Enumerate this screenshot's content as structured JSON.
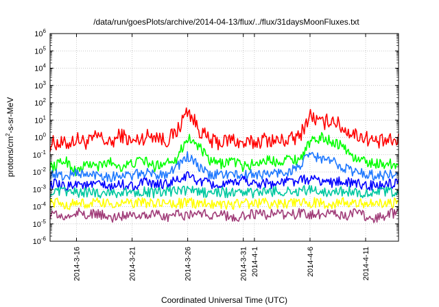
{
  "chart_data": {
    "type": "line",
    "title": "/data/run/goesPlots/archive/2014-04-13/flux/../flux/31daysMoonFluxes.txt",
    "xlabel": "Coordinated Universal Time (UTC)",
    "ylabel": "protons/cm2-s-sr-MeV",
    "ylabel_parts": [
      "protons/cm",
      "2",
      "-s-sr-MeV"
    ],
    "yscale": "log",
    "ylim_exponents": [
      -6,
      6
    ],
    "yticks": [
      {
        "base": "10",
        "exp": "-6"
      },
      {
        "base": "10",
        "exp": "-5"
      },
      {
        "base": "10",
        "exp": "-4"
      },
      {
        "base": "10",
        "exp": "-3"
      },
      {
        "base": "10",
        "exp": "-2"
      },
      {
        "base": "10",
        "exp": "-1"
      },
      {
        "base": "10",
        "exp": "0"
      },
      {
        "base": "10",
        "exp": "1"
      },
      {
        "base": "10",
        "exp": "2"
      },
      {
        "base": "10",
        "exp": "3"
      },
      {
        "base": "10",
        "exp": "4"
      },
      {
        "base": "10",
        "exp": "5"
      },
      {
        "base": "10",
        "exp": "6"
      }
    ],
    "xlim": [
      "2014-03-13T15:00",
      "2014-04-13T23:00"
    ],
    "xticks": [
      {
        "date": "2014-03-16",
        "label": "2014-3-16"
      },
      {
        "date": "2014-03-21",
        "label": "2014-3-21"
      },
      {
        "date": "2014-03-26",
        "label": "2014-3-26"
      },
      {
        "date": "2014-03-31",
        "label": "2014-3-31"
      },
      {
        "date": "2014-04-01",
        "label": "2014-4-1"
      },
      {
        "date": "2014-04-06",
        "label": "2014-4-6"
      },
      {
        "date": "2014-04-11",
        "label": "2014-4-11"
      }
    ],
    "grid": true,
    "series": [
      {
        "color": "#ff0000",
        "x": [
          "2014-03-13",
          "2014-03-14",
          "2014-03-15",
          "2014-03-16",
          "2014-03-17",
          "2014-03-18",
          "2014-03-19",
          "2014-03-20",
          "2014-03-21",
          "2014-03-22",
          "2014-03-23",
          "2014-03-24",
          "2014-03-25",
          "2014-03-26",
          "2014-03-27",
          "2014-03-28",
          "2014-03-29",
          "2014-03-30",
          "2014-03-31",
          "2014-04-01",
          "2014-04-02",
          "2014-04-03",
          "2014-04-04",
          "2014-04-05",
          "2014-04-06",
          "2014-04-07",
          "2014-04-08",
          "2014-04-09",
          "2014-04-10",
          "2014-04-11",
          "2014-04-12",
          "2014-04-13"
        ],
        "y": [
          0.3,
          0.5,
          0.4,
          0.8,
          0.5,
          1.2,
          0.4,
          1.5,
          0.5,
          1.0,
          1.5,
          0.6,
          2.0,
          40,
          3.0,
          0.6,
          0.5,
          0.8,
          0.4,
          0.5,
          0.8,
          0.6,
          0.7,
          1.0,
          20,
          6.0,
          12,
          3.0,
          1.5,
          1.0,
          0.5,
          0.6
        ]
      },
      {
        "color": "#00ff00",
        "x": [
          "2014-03-13",
          "2014-03-14",
          "2014-03-15",
          "2014-03-16",
          "2014-03-17",
          "2014-03-18",
          "2014-03-19",
          "2014-03-20",
          "2014-03-21",
          "2014-03-22",
          "2014-03-23",
          "2014-03-24",
          "2014-03-25",
          "2014-03-26",
          "2014-03-27",
          "2014-03-28",
          "2014-03-29",
          "2014-03-30",
          "2014-03-31",
          "2014-04-01",
          "2014-04-02",
          "2014-04-03",
          "2014-04-04",
          "2014-04-05",
          "2014-04-06",
          "2014-04-07",
          "2014-04-08",
          "2014-04-09",
          "2014-04-10",
          "2014-04-11",
          "2014-04-12",
          "2014-04-13"
        ],
        "y": [
          0.03,
          0.02,
          0.05,
          0.01,
          0.03,
          0.02,
          0.04,
          0.02,
          0.03,
          0.05,
          0.02,
          0.04,
          0.06,
          1.0,
          0.3,
          0.04,
          0.03,
          0.05,
          0.02,
          0.03,
          0.05,
          0.04,
          0.06,
          0.05,
          0.5,
          1.0,
          0.6,
          0.3,
          0.06,
          0.04,
          0.03,
          0.03
        ]
      },
      {
        "color": "#1e78ff",
        "x": [
          "2014-03-13",
          "2014-03-14",
          "2014-03-15",
          "2014-03-16",
          "2014-03-17",
          "2014-03-18",
          "2014-03-19",
          "2014-03-20",
          "2014-03-21",
          "2014-03-22",
          "2014-03-23",
          "2014-03-24",
          "2014-03-25",
          "2014-03-26",
          "2014-03-27",
          "2014-03-28",
          "2014-03-29",
          "2014-03-30",
          "2014-03-31",
          "2014-04-01",
          "2014-04-02",
          "2014-04-03",
          "2014-04-04",
          "2014-04-05",
          "2014-04-06",
          "2014-04-07",
          "2014-04-08",
          "2014-04-09",
          "2014-04-10",
          "2014-04-11",
          "2014-04-12",
          "2014-04-13"
        ],
        "y": [
          0.006,
          0.008,
          0.005,
          0.01,
          0.006,
          0.008,
          0.005,
          0.007,
          0.006,
          0.009,
          0.007,
          0.008,
          0.02,
          0.08,
          0.02,
          0.006,
          0.008,
          0.007,
          0.006,
          0.008,
          0.007,
          0.009,
          0.01,
          0.02,
          0.1,
          0.06,
          0.04,
          0.02,
          0.01,
          0.008,
          0.006,
          0.007
        ]
      },
      {
        "color": "#0000ff",
        "x": [
          "2014-03-13",
          "2014-03-14",
          "2014-03-15",
          "2014-03-16",
          "2014-03-17",
          "2014-03-18",
          "2014-03-19",
          "2014-03-20",
          "2014-03-21",
          "2014-03-22",
          "2014-03-23",
          "2014-03-24",
          "2014-03-25",
          "2014-03-26",
          "2014-03-27",
          "2014-03-28",
          "2014-03-29",
          "2014-03-30",
          "2014-03-31",
          "2014-04-01",
          "2014-04-02",
          "2014-04-03",
          "2014-04-04",
          "2014-04-05",
          "2014-04-06",
          "2014-04-07",
          "2014-04-08",
          "2014-04-09",
          "2014-04-10",
          "2014-04-11",
          "2014-04-12",
          "2014-04-13"
        ],
        "y": [
          0.0015,
          0.002,
          0.0012,
          0.0025,
          0.0015,
          0.002,
          0.0012,
          0.002,
          0.0015,
          0.0025,
          0.0018,
          0.002,
          0.003,
          0.006,
          0.003,
          0.002,
          0.0015,
          0.002,
          0.004,
          0.002,
          0.0025,
          0.002,
          0.003,
          0.003,
          0.004,
          0.003,
          0.0025,
          0.003,
          0.002,
          0.0018,
          0.0015,
          0.002
        ]
      },
      {
        "color": "#00c8a0",
        "x": [
          "2014-03-13",
          "2014-03-14",
          "2014-03-15",
          "2014-03-16",
          "2014-03-17",
          "2014-03-18",
          "2014-03-19",
          "2014-03-20",
          "2014-03-21",
          "2014-03-22",
          "2014-03-23",
          "2014-03-24",
          "2014-03-25",
          "2014-03-26",
          "2014-03-27",
          "2014-03-28",
          "2014-03-29",
          "2014-03-30",
          "2014-03-31",
          "2014-04-01",
          "2014-04-02",
          "2014-04-03",
          "2014-04-04",
          "2014-04-05",
          "2014-04-06",
          "2014-04-07",
          "2014-04-08",
          "2014-04-09",
          "2014-04-10",
          "2014-04-11",
          "2014-04-12",
          "2014-04-13"
        ],
        "y": [
          0.0007,
          0.0006,
          0.0008,
          0.0006,
          0.0007,
          0.0006,
          0.0007,
          0.0006,
          0.0007,
          0.0008,
          0.0006,
          0.0007,
          0.0008,
          0.0009,
          0.0007,
          0.0006,
          0.0007,
          0.0006,
          0.0007,
          0.0006,
          0.0007,
          0.0008,
          0.0007,
          0.0008,
          0.0009,
          0.0008,
          0.0007,
          0.0008,
          0.0007,
          0.0006,
          0.0007,
          0.0007
        ]
      },
      {
        "color": "#ffff00",
        "x": [
          "2014-03-13",
          "2014-03-14",
          "2014-03-15",
          "2014-03-16",
          "2014-03-17",
          "2014-03-18",
          "2014-03-19",
          "2014-03-20",
          "2014-03-21",
          "2014-03-22",
          "2014-03-23",
          "2014-03-24",
          "2014-03-25",
          "2014-03-26",
          "2014-03-27",
          "2014-03-28",
          "2014-03-29",
          "2014-03-30",
          "2014-03-31",
          "2014-04-01",
          "2014-04-02",
          "2014-04-03",
          "2014-04-04",
          "2014-04-05",
          "2014-04-06",
          "2014-04-07",
          "2014-04-08",
          "2014-04-09",
          "2014-04-10",
          "2014-04-11",
          "2014-04-12",
          "2014-04-13"
        ],
        "y": [
          0.00015,
          0.00018,
          0.00012,
          0.00016,
          0.00014,
          0.00017,
          0.00013,
          0.00016,
          0.00015,
          0.00018,
          0.00014,
          0.00016,
          0.00015,
          0.00017,
          0.00014,
          0.00016,
          0.00015,
          0.00013,
          0.00016,
          0.00015,
          0.00017,
          0.00014,
          0.00016,
          0.00015,
          0.00017,
          0.00016,
          0.00015,
          0.00017,
          0.00014,
          0.00016,
          0.00015,
          0.00016
        ]
      },
      {
        "color": "#a03c78",
        "x": [
          "2014-03-13",
          "2014-03-14",
          "2014-03-15",
          "2014-03-16",
          "2014-03-17",
          "2014-03-18",
          "2014-03-19",
          "2014-03-20",
          "2014-03-21",
          "2014-03-22",
          "2014-03-23",
          "2014-03-24",
          "2014-03-25",
          "2014-03-26",
          "2014-03-27",
          "2014-03-28",
          "2014-03-29",
          "2014-03-30",
          "2014-03-31",
          "2014-04-01",
          "2014-04-02",
          "2014-04-03",
          "2014-04-04",
          "2014-04-05",
          "2014-04-06",
          "2014-04-07",
          "2014-04-08",
          "2014-04-09",
          "2014-04-10",
          "2014-04-11",
          "2014-04-12",
          "2014-04-13"
        ],
        "y": [
          3e-05,
          4e-05,
          2e-05,
          5e-05,
          3e-05,
          4e-05,
          2e-05,
          3e-05,
          4e-05,
          3e-05,
          5e-05,
          2e-05,
          4e-05,
          3e-05,
          5e-05,
          3e-05,
          4e-05,
          2e-05,
          3e-05,
          4e-05,
          3e-05,
          5e-05,
          3e-05,
          4e-05,
          3e-05,
          4e-05,
          5e-05,
          3e-05,
          4e-05,
          3e-05,
          2e-05,
          4e-05
        ]
      }
    ]
  }
}
